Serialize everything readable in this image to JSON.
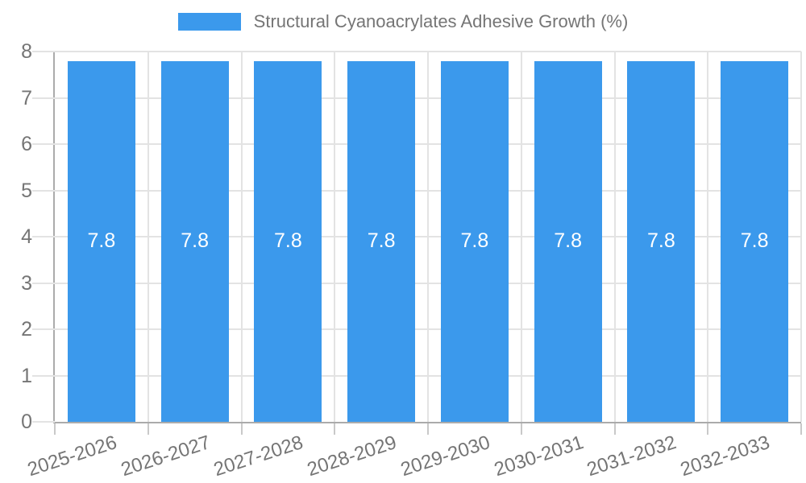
{
  "chart_data": {
    "type": "bar",
    "title": "Structural Cyanoacrylates Adhesive Growth (%)",
    "legend_position": "top",
    "categories": [
      "2025-2026",
      "2026-2027",
      "2027-2028",
      "2028-2029",
      "2029-2030",
      "2030-2031",
      "2031-2032",
      "2032-2033"
    ],
    "values": [
      7.8,
      7.8,
      7.8,
      7.8,
      7.8,
      7.8,
      7.8,
      7.8
    ],
    "bar_labels": [
      "7.8",
      "7.8",
      "7.8",
      "7.8",
      "7.8",
      "7.8",
      "7.8",
      "7.8"
    ],
    "xlabel": "",
    "ylabel": "",
    "ylim": [
      0,
      8
    ],
    "yticks": [
      0,
      1,
      2,
      3,
      4,
      5,
      6,
      7,
      8
    ],
    "grid": true,
    "x_tick_rotation_deg": -18,
    "colors": {
      "bar": "#3b99ec",
      "grid": "#e3e3e3",
      "axis": "#ababab",
      "tick": "#c9c9c9",
      "text": "#757575",
      "bar_label": "#ffffff",
      "background": "#ffffff"
    }
  }
}
